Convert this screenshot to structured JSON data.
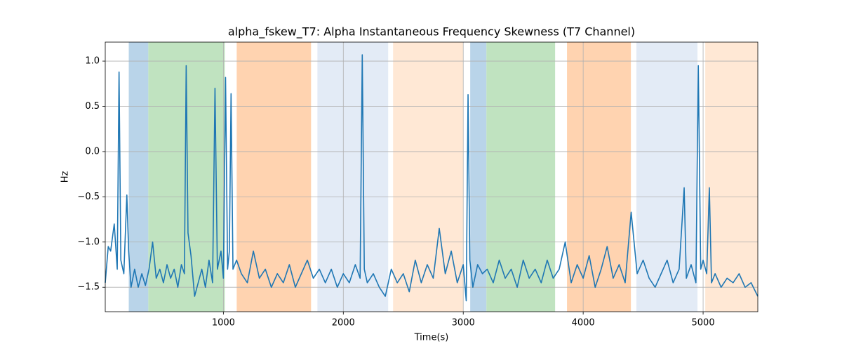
{
  "chart_data": {
    "type": "line",
    "title": "alpha_fskew_T7: Alpha Instantaneous Frequency Skewness (T7 Channel)",
    "x_label": "Time(s)",
    "y_label": "Hz",
    "xlim": [
      15,
      5456
    ],
    "ylim": [
      -1.77,
      1.21
    ],
    "xticks": [
      1000,
      2000,
      3000,
      4000,
      5000
    ],
    "yticks": [
      {
        "value": -1.5,
        "label": "−1.5"
      },
      {
        "value": -1.0,
        "label": "−1.0"
      },
      {
        "value": -0.5,
        "label": "−0.5"
      },
      {
        "value": 0.0,
        "label": "0.0"
      },
      0.5,
      {
        "value": 1.0,
        "label": "1.0"
      }
    ],
    "grid": true,
    "spans": [
      {
        "start": 211,
        "end": 374,
        "color": "#b9d4e9"
      },
      {
        "start": 374,
        "end": 1012,
        "color": "#c0e3c0"
      },
      {
        "start": 1111,
        "end": 1731,
        "color": "#ffd3b0"
      },
      {
        "start": 1784,
        "end": 2374,
        "color": "#e3ebf6"
      },
      {
        "start": 2415,
        "end": 3000,
        "color": "#ffe8d5"
      },
      {
        "start": 3058,
        "end": 3193,
        "color": "#b9d4e9"
      },
      {
        "start": 3193,
        "end": 3766,
        "color": "#c0e3c0"
      },
      {
        "start": 3865,
        "end": 4398,
        "color": "#ffd3b0"
      },
      {
        "start": 4444,
        "end": 4953,
        "color": "#e3ebf6"
      },
      {
        "start": 5018,
        "end": 5456,
        "color": "#ffe8d5"
      }
    ],
    "x": [
      15,
      40,
      60,
      90,
      115,
      130,
      145,
      170,
      195,
      210,
      230,
      260,
      290,
      320,
      350,
      380,
      410,
      440,
      470,
      500,
      530,
      560,
      590,
      620,
      650,
      675,
      690,
      705,
      730,
      760,
      790,
      820,
      850,
      880,
      910,
      930,
      950,
      980,
      1000,
      1018,
      1035,
      1050,
      1064,
      1080,
      1110,
      1150,
      1200,
      1250,
      1300,
      1350,
      1400,
      1450,
      1500,
      1550,
      1600,
      1650,
      1700,
      1750,
      1800,
      1850,
      1900,
      1950,
      2000,
      2050,
      2100,
      2140,
      2158,
      2175,
      2200,
      2250,
      2300,
      2350,
      2400,
      2450,
      2500,
      2550,
      2600,
      2650,
      2700,
      2750,
      2800,
      2850,
      2900,
      2950,
      3000,
      3025,
      3040,
      3055,
      3080,
      3120,
      3160,
      3200,
      3250,
      3300,
      3350,
      3400,
      3450,
      3500,
      3550,
      3600,
      3650,
      3700,
      3750,
      3800,
      3850,
      3900,
      3950,
      4000,
      4050,
      4100,
      4150,
      4200,
      4250,
      4300,
      4350,
      4400,
      4450,
      4500,
      4550,
      4600,
      4650,
      4700,
      4750,
      4800,
      4842,
      4860,
      4900,
      4940,
      4960,
      4980,
      5000,
      5030,
      5052,
      5070,
      5100,
      5150,
      5200,
      5250,
      5300,
      5350,
      5400,
      5456
    ],
    "series": [
      {
        "color": "#1f77b4",
        "values": [
          -1.45,
          -1.05,
          -1.1,
          -0.8,
          -1.3,
          0.88,
          -1.2,
          -1.35,
          -0.48,
          -1.1,
          -1.5,
          -1.3,
          -1.5,
          -1.35,
          -1.48,
          -1.3,
          -1.0,
          -1.4,
          -1.3,
          -1.45,
          -1.25,
          -1.4,
          -1.3,
          -1.5,
          -1.25,
          -1.35,
          0.95,
          -0.9,
          -1.15,
          -1.6,
          -1.45,
          -1.3,
          -1.5,
          -1.2,
          -1.45,
          0.7,
          -1.3,
          -1.1,
          -1.4,
          0.82,
          -1.3,
          -1.1,
          0.64,
          -1.3,
          -1.2,
          -1.35,
          -1.45,
          -1.1,
          -1.4,
          -1.3,
          -1.5,
          -1.35,
          -1.45,
          -1.25,
          -1.5,
          -1.35,
          -1.2,
          -1.4,
          -1.3,
          -1.45,
          -1.3,
          -1.5,
          -1.35,
          -1.45,
          -1.25,
          -1.4,
          1.07,
          -1.3,
          -1.45,
          -1.35,
          -1.5,
          -1.6,
          -1.3,
          -1.45,
          -1.35,
          -1.55,
          -1.2,
          -1.45,
          -1.25,
          -1.4,
          -0.85,
          -1.35,
          -1.1,
          -1.45,
          -1.25,
          -1.65,
          0.63,
          -1.2,
          -1.5,
          -1.25,
          -1.35,
          -1.3,
          -1.45,
          -1.2,
          -1.4,
          -1.3,
          -1.5,
          -1.2,
          -1.4,
          -1.3,
          -1.45,
          -1.2,
          -1.4,
          -1.3,
          -1.0,
          -1.45,
          -1.25,
          -1.4,
          -1.15,
          -1.5,
          -1.3,
          -1.05,
          -1.4,
          -1.25,
          -1.45,
          -0.67,
          -1.35,
          -1.2,
          -1.4,
          -1.5,
          -1.35,
          -1.2,
          -1.45,
          -1.3,
          -0.4,
          -1.4,
          -1.25,
          -1.45,
          0.95,
          -1.3,
          -1.2,
          -1.35,
          -0.4,
          -1.45,
          -1.35,
          -1.5,
          -1.4,
          -1.45,
          -1.35,
          -1.5,
          -1.45,
          -1.6
        ]
      }
    ]
  }
}
